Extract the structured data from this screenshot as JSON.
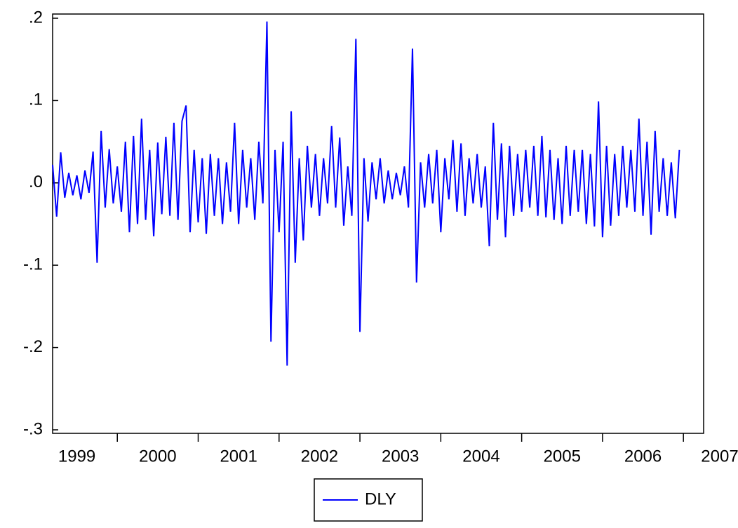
{
  "chart_data": {
    "type": "line",
    "x": [
      1999.2,
      1999.25,
      1999.3,
      1999.35,
      1999.4,
      1999.45,
      1999.5,
      1999.55,
      1999.6,
      1999.65,
      1999.7,
      1999.75,
      1999.8,
      1999.85,
      1999.9,
      1999.95,
      2000.0,
      2000.05,
      2000.1,
      2000.15,
      2000.2,
      2000.25,
      2000.3,
      2000.35,
      2000.4,
      2000.45,
      2000.5,
      2000.55,
      2000.6,
      2000.65,
      2000.7,
      2000.75,
      2000.8,
      2000.85,
      2000.9,
      2000.95,
      2001.0,
      2001.05,
      2001.1,
      2001.15,
      2001.2,
      2001.25,
      2001.3,
      2001.35,
      2001.4,
      2001.45,
      2001.5,
      2001.55,
      2001.6,
      2001.65,
      2001.7,
      2001.75,
      2001.8,
      2001.85,
      2001.9,
      2001.95,
      2002.0,
      2002.05,
      2002.1,
      2002.15,
      2002.2,
      2002.25,
      2002.3,
      2002.35,
      2002.4,
      2002.45,
      2002.5,
      2002.55,
      2002.6,
      2002.65,
      2002.7,
      2002.75,
      2002.8,
      2002.85,
      2002.9,
      2002.95,
      2003.0,
      2003.05,
      2003.1,
      2003.15,
      2003.2,
      2003.25,
      2003.3,
      2003.35,
      2003.4,
      2003.45,
      2003.5,
      2003.55,
      2003.6,
      2003.65,
      2003.7,
      2003.75,
      2003.8,
      2003.85,
      2003.9,
      2003.95,
      2004.0,
      2004.05,
      2004.1,
      2004.15,
      2004.2,
      2004.25,
      2004.3,
      2004.35,
      2004.4,
      2004.45,
      2004.5,
      2004.55,
      2004.6,
      2004.65,
      2004.7,
      2004.75,
      2004.8,
      2004.85,
      2004.9,
      2004.95,
      2005.0,
      2005.05,
      2005.1,
      2005.15,
      2005.2,
      2005.25,
      2005.3,
      2005.35,
      2005.4,
      2005.45,
      2005.5,
      2005.55,
      2005.6,
      2005.65,
      2005.7,
      2005.75,
      2005.8,
      2005.85,
      2005.9,
      2005.95,
      2006.0,
      2006.05,
      2006.1,
      2006.15,
      2006.2,
      2006.25,
      2006.3,
      2006.35,
      2006.4,
      2006.45,
      2006.5,
      2006.55,
      2006.6,
      2006.65,
      2006.7,
      2006.75,
      2006.8,
      2006.85,
      2006.9,
      2006.95
    ],
    "series": [
      {
        "name": "DLY",
        "color": "#0000ff",
        "values": [
          0.022,
          -0.041,
          0.037,
          -0.018,
          0.012,
          -0.015,
          0.009,
          -0.02,
          0.015,
          -0.012,
          0.038,
          -0.097,
          0.063,
          -0.03,
          0.041,
          -0.025,
          0.02,
          -0.035,
          0.05,
          -0.06,
          0.057,
          -0.05,
          0.078,
          -0.045,
          0.04,
          -0.065,
          0.049,
          -0.038,
          0.056,
          -0.04,
          0.073,
          -0.045,
          0.075,
          0.094,
          -0.06,
          0.04,
          -0.048,
          0.03,
          -0.062,
          0.035,
          -0.04,
          0.03,
          -0.05,
          0.025,
          -0.035,
          0.073,
          -0.05,
          0.04,
          -0.03,
          0.03,
          -0.045,
          0.05,
          -0.025,
          0.196,
          -0.193,
          0.04,
          -0.06,
          0.05,
          -0.222,
          0.087,
          -0.097,
          0.03,
          -0.07,
          0.045,
          -0.03,
          0.035,
          -0.04,
          0.03,
          -0.025,
          0.069,
          -0.03,
          0.055,
          -0.052,
          0.02,
          -0.04,
          0.175,
          -0.181,
          0.03,
          -0.047,
          0.025,
          -0.02,
          0.03,
          -0.025,
          0.015,
          -0.02,
          0.012,
          -0.015,
          0.02,
          -0.03,
          0.163,
          -0.121,
          0.025,
          -0.03,
          0.035,
          -0.025,
          0.04,
          -0.06,
          0.03,
          -0.02,
          0.052,
          -0.035,
          0.048,
          -0.04,
          0.03,
          -0.025,
          0.035,
          -0.03,
          0.02,
          -0.077,
          0.073,
          -0.045,
          0.048,
          -0.066,
          0.045,
          -0.04,
          0.035,
          -0.035,
          0.04,
          -0.03,
          0.045,
          -0.04,
          0.057,
          -0.042,
          0.04,
          -0.045,
          0.03,
          -0.05,
          0.045,
          -0.04,
          0.04,
          -0.035,
          0.04,
          -0.05,
          0.035,
          -0.053,
          0.099,
          -0.066,
          0.045,
          -0.052,
          0.035,
          -0.04,
          0.045,
          -0.03,
          0.04,
          -0.035,
          0.078,
          -0.04,
          0.05,
          -0.063,
          0.063,
          -0.035,
          0.03,
          -0.04,
          0.025,
          -0.043,
          0.04
        ]
      }
    ],
    "xlim": [
      1999.2,
      2007.25
    ],
    "xticks": [
      1999,
      2000,
      2001,
      2002,
      2003,
      2004,
      2005,
      2006,
      2007
    ],
    "ylim": [
      -0.3,
      0.2
    ],
    "yticks": [
      {
        "value": -0.3,
        "label": "-.3"
      },
      {
        "value": -0.2,
        "label": "-.2"
      },
      {
        "value": -0.1,
        "label": "-.1"
      },
      {
        "value": 0,
        "label": ".0"
      },
      {
        "value": 0.1,
        "label": ".1"
      },
      {
        "value": 0.2,
        "label": ".2"
      }
    ],
    "legend": "bottom"
  }
}
